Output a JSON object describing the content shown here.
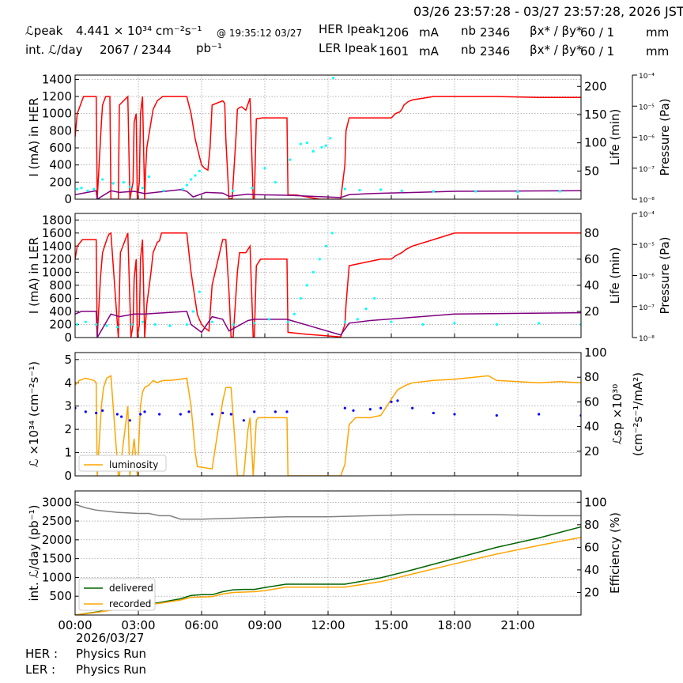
{
  "header": {
    "date_range": "03/26 23:57:28 - 03/27 23:57:28, 2026 JST",
    "lpeak_label": "ℒpeak",
    "lpeak_value": "4.441  × 10³⁴ cm⁻²s⁻¹",
    "lpeak_time": "@ 19:35:12 03/27",
    "int_label": "int. ℒ/day",
    "int_value": "2067   /  2344",
    "int_unit": "pb⁻¹",
    "her_label": "HER Ipeak",
    "her_current": "1206",
    "her_unit": "mA",
    "her_nb_label": "nb",
    "her_nb": "2346",
    "her_beta_label": "βx* / βy*",
    "her_beta": "60    / 1",
    "her_beta_unit": "mm",
    "ler_label": "LER Ipeak",
    "ler_current": "1601",
    "ler_unit": "mA",
    "ler_nb_label": "nb",
    "ler_nb": "2346",
    "ler_beta_label": "βx* / βy*",
    "ler_beta": "60    / 1",
    "ler_beta_unit": "mm"
  },
  "footer": {
    "date": "2026/03/27",
    "her_label": "HER :",
    "her_status": "Physics Run",
    "ler_label": "LER :",
    "ler_status": "Physics Run"
  },
  "colors": {
    "current": "#ff0000",
    "life": "#800080",
    "pressure": "#00ffff",
    "luminosity": "#ffa500",
    "specific_lumi": "#0000ff",
    "delivered": "#006400",
    "recorded": "#ffa500",
    "efficiency": "#808080"
  },
  "chart_data": [
    {
      "type": "line",
      "panel": "HER",
      "ylabel": "I (mA) in HER",
      "ylim": [
        0,
        1450
      ],
      "yticks": [
        0,
        200,
        400,
        600,
        800,
        1000,
        1200,
        1400
      ],
      "y2label": "Life (min)",
      "y2lim": [
        0,
        220
      ],
      "y2ticks": [
        50,
        100,
        150,
        200
      ],
      "y3label": "Pressure (Pa)",
      "y3ticks": [
        "10⁻⁴",
        "10⁻⁵",
        "10⁻⁶",
        "10⁻⁷",
        "10⁻⁸"
      ],
      "xlim": [
        0,
        24
      ],
      "grid": true,
      "series": [
        {
          "key": "current",
          "x": [
            0,
            0.1,
            0.4,
            0.9,
            1.0,
            1.05,
            1.25,
            1.3,
            1.45,
            1.65,
            1.7,
            2.05,
            2.1,
            2.5,
            2.6,
            2.75,
            2.8,
            2.9,
            2.95,
            3.05,
            3.1,
            3.15,
            3.2,
            3.3,
            3.35,
            3.4,
            3.6,
            3.7,
            3.9,
            4.0,
            4.15,
            4.4,
            5.3,
            5.5,
            5.7,
            5.9,
            6.0,
            6.15,
            6.3,
            6.4,
            6.5,
            7.0,
            7.1,
            7.15,
            7.3,
            7.45,
            7.65,
            7.7,
            7.8,
            7.9,
            8.1,
            8.3,
            8.45,
            8.5,
            8.6,
            8.9,
            9.0,
            10.05,
            10.1,
            10.5,
            11.6,
            12.6,
            12.8,
            12.85,
            13.0,
            14.5,
            15.0,
            15.2,
            15.4,
            15.5,
            15.6,
            15.8,
            16.0,
            17.0,
            18.0,
            20.0,
            22.0,
            24.0
          ],
          "y": [
            730,
            1000,
            1200,
            1200,
            1200,
            0,
            900,
            1100,
            1200,
            1200,
            0,
            0,
            1100,
            1200,
            0,
            200,
            900,
            1000,
            0,
            200,
            1000,
            1100,
            1200,
            0,
            350,
            600,
            900,
            1050,
            1150,
            1170,
            1200,
            1200,
            1200,
            1000,
            700,
            500,
            400,
            360,
            340,
            600,
            1100,
            1150,
            1120,
            700,
            0,
            10,
            800,
            1050,
            1070,
            1080,
            1040,
            1180,
            0,
            10,
            940,
            950,
            950,
            950,
            50,
            50,
            0,
            0,
            400,
            800,
            950,
            950,
            950,
            1000,
            1020,
            1050,
            1100,
            1140,
            1160,
            1200,
            1200,
            1200,
            1190,
            1190
          ]
        },
        {
          "key": "life",
          "axis": "y2",
          "x": [
            0,
            1.0,
            1.05,
            1.7,
            2.1,
            2.8,
            3.3,
            5.0,
            5.3,
            5.6,
            6.2,
            7.0,
            7.3,
            8.2,
            8.5,
            10.05,
            12.6,
            13.0,
            14.0,
            18.0,
            24.0
          ],
          "y": [
            8,
            15,
            0,
            15,
            12,
            14,
            10,
            17,
            14,
            4,
            12,
            11,
            5,
            9,
            8,
            7,
            3,
            8,
            10,
            14,
            15
          ]
        },
        {
          "key": "pressure",
          "axis": "y2",
          "x": [
            0.1,
            0.3,
            0.6,
            0.9,
            1.3,
            1.8,
            2.3,
            2.6,
            3.2,
            3.5,
            4.2,
            5.1,
            5.3,
            5.5,
            5.7,
            5.9,
            7.5,
            8.4,
            9.0,
            9.5,
            10.2,
            10.7,
            11.0,
            11.3,
            11.7,
            11.9,
            12.1,
            12.25,
            12.8,
            13.5,
            14.5,
            15.5,
            17.0,
            19.0,
            21.0,
            23.0
          ],
          "y": [
            18,
            20,
            15,
            18,
            35,
            28,
            30,
            22,
            20,
            40,
            15,
            18,
            25,
            35,
            42,
            50,
            15,
            20,
            55,
            30,
            70,
            98,
            100,
            85,
            92,
            95,
            108,
            215,
            18,
            16,
            17,
            15,
            14,
            14,
            13,
            14
          ]
        }
      ]
    },
    {
      "type": "line",
      "panel": "LER",
      "ylabel": "I (mA) in LER",
      "ylim": [
        0,
        1900
      ],
      "yticks": [
        0,
        200,
        400,
        600,
        800,
        1000,
        1200,
        1400,
        1600,
        1800
      ],
      "y2label": "Life (min)",
      "y2lim": [
        0,
        95
      ],
      "y2ticks": [
        20,
        40,
        60,
        80
      ],
      "y3label": "Pressure (Pa)",
      "y3ticks": [
        "10⁻⁴",
        "10⁻⁵",
        "10⁻⁶",
        "10⁻⁷",
        "10⁻⁸"
      ],
      "xlim": [
        0,
        24
      ],
      "grid": true,
      "series": [
        {
          "key": "current",
          "x": [
            0,
            0.1,
            0.35,
            0.85,
            1.0,
            1.05,
            1.2,
            1.3,
            1.5,
            1.6,
            1.7,
            2.05,
            2.15,
            2.5,
            2.65,
            2.75,
            2.8,
            2.9,
            2.95,
            3.05,
            3.1,
            3.2,
            3.3,
            3.4,
            3.6,
            3.7,
            3.9,
            4.0,
            4.1,
            4.4,
            5.3,
            5.5,
            5.8,
            6.0,
            6.15,
            6.35,
            6.5,
            7.0,
            7.15,
            7.3,
            7.4,
            7.5,
            7.7,
            7.8,
            8.1,
            8.3,
            8.45,
            8.5,
            8.6,
            8.8,
            9.2,
            10.05,
            10.1,
            11.0,
            12.6,
            12.8,
            12.85,
            13.0,
            14.5,
            15.0,
            15.2,
            15.5,
            15.7,
            16.0,
            17.0,
            18.0,
            20.0,
            22.0,
            24.0
          ],
          "y": [
            1200,
            1400,
            1500,
            1500,
            1500,
            0,
            900,
            1300,
            1500,
            1580,
            1600,
            0,
            1300,
            1600,
            0,
            200,
            900,
            1200,
            0,
            200,
            1200,
            1500,
            0,
            500,
            1000,
            1300,
            1460,
            1480,
            1600,
            1600,
            1600,
            1000,
            350,
            200,
            150,
            100,
            800,
            1500,
            1500,
            700,
            0,
            10,
            1000,
            1300,
            1300,
            1400,
            0,
            10,
            1100,
            1200,
            1200,
            1200,
            80,
            50,
            10,
            200,
            500,
            1100,
            1200,
            1200,
            1250,
            1300,
            1350,
            1400,
            1500,
            1600,
            1600,
            1600,
            1600
          ]
        },
        {
          "key": "life",
          "axis": "y2",
          "x": [
            0,
            0.3,
            1.0,
            1.05,
            1.7,
            2.1,
            2.8,
            3.3,
            5.3,
            5.5,
            6.0,
            6.5,
            7.0,
            7.3,
            8.2,
            8.5,
            10.05,
            12.6,
            13.0,
            14.0,
            18.0,
            24.0
          ],
          "y": [
            18,
            20,
            20,
            0,
            18,
            16,
            18,
            18,
            20,
            10,
            4,
            16,
            14,
            5,
            13,
            14,
            14,
            2,
            11,
            13,
            18,
            19
          ]
        },
        {
          "key": "pressure",
          "axis": "y2",
          "x": [
            0.1,
            0.5,
            1.0,
            1.5,
            2.0,
            2.7,
            3.2,
            3.8,
            4.5,
            5.3,
            5.6,
            5.9,
            6.5,
            7.5,
            8.5,
            9.2,
            10.1,
            10.4,
            10.7,
            11.0,
            11.3,
            11.6,
            11.9,
            12.2,
            12.8,
            13.4,
            13.8,
            14.2,
            15.0,
            16.5,
            18.0,
            20.0,
            22.0,
            24.0
          ],
          "y": [
            10,
            12,
            10,
            9,
            8,
            10,
            12,
            10,
            9,
            10,
            20,
            35,
            12,
            10,
            11,
            14,
            12,
            18,
            30,
            40,
            50,
            60,
            70,
            80,
            12,
            14,
            22,
            30,
            12,
            10,
            11,
            10,
            11,
            10
          ]
        }
      ]
    },
    {
      "type": "line",
      "panel": "Luminosity",
      "ylabel": "ℒ ×10³⁴ (cm⁻²s⁻¹)",
      "ylim": [
        0,
        5.3
      ],
      "yticks": [
        0,
        1,
        2,
        3,
        4,
        5
      ],
      "y2label": "ℒsp ×10³⁰ (cm⁻²s⁻¹/mA²)",
      "y2lim": [
        0,
        100
      ],
      "y2ticks": [
        20,
        40,
        60,
        80,
        100
      ],
      "xlim": [
        0,
        24
      ],
      "grid": true,
      "legend": {
        "location": "lower-left",
        "entries": [
          "luminosity"
        ]
      },
      "series": [
        {
          "key": "luminosity",
          "name": "luminosity",
          "x": [
            0,
            0.2,
            0.5,
            0.9,
            1.0,
            1.05,
            1.25,
            1.35,
            1.5,
            1.7,
            2.05,
            2.1,
            2.5,
            2.6,
            2.8,
            2.95,
            3.1,
            3.2,
            3.3,
            3.5,
            3.7,
            3.9,
            4.0,
            4.2,
            4.5,
            5.0,
            5.3,
            5.5,
            5.7,
            5.8,
            6.5,
            6.7,
            7.0,
            7.15,
            7.4,
            7.7,
            8.0,
            8.2,
            8.3,
            8.45,
            8.6,
            8.7,
            9.0,
            10.05,
            10.1,
            12.6,
            12.8,
            13.0,
            13.3,
            14.0,
            14.5,
            15.0,
            15.3,
            15.7,
            16.0,
            17.0,
            18.0,
            19.6,
            20.0,
            22.0,
            23.0,
            24.0
          ],
          "y": [
            3.9,
            4.1,
            4.2,
            4.1,
            4.0,
            0,
            3.0,
            3.8,
            4.2,
            4.3,
            0,
            0,
            3.0,
            0,
            1.6,
            0,
            3.0,
            3.6,
            3.8,
            3.9,
            4.1,
            4.0,
            4.05,
            4.1,
            4.1,
            4.15,
            4.2,
            3.0,
            1.0,
            0.4,
            0.3,
            1.5,
            3.2,
            3.8,
            3.8,
            0,
            0,
            2.0,
            2.5,
            0,
            2.4,
            2.5,
            2.5,
            2.5,
            0,
            0,
            0.5,
            2.2,
            2.5,
            2.5,
            2.6,
            3.3,
            3.7,
            3.9,
            4.0,
            4.1,
            4.15,
            4.3,
            4.1,
            4.0,
            4.05,
            4.0
          ]
        },
        {
          "key": "specific_lumi",
          "axis": "y2",
          "x": [
            0,
            0.5,
            1.0,
            1.3,
            2.0,
            2.2,
            2.6,
            3.1,
            3.3,
            4.0,
            5.0,
            5.4,
            6.5,
            7.0,
            7.4,
            8.0,
            8.5,
            9.5,
            10.05,
            12.8,
            13.2,
            14.0,
            14.5,
            15.0,
            15.3,
            16.0,
            17.0,
            18.0,
            20.0,
            22.0,
            24.0
          ],
          "y": [
            55,
            52,
            51,
            53,
            50,
            48,
            45,
            50,
            52,
            50,
            50,
            52,
            50,
            51,
            50,
            45,
            52,
            52,
            52,
            55,
            53,
            54,
            55,
            60,
            61,
            55,
            51,
            50,
            49,
            50,
            49
          ]
        }
      ]
    },
    {
      "type": "line",
      "panel": "Integrated",
      "ylabel": "int. ℒ/day (pb⁻¹)",
      "ylim": [
        0,
        3300
      ],
      "yticks": [
        500,
        1000,
        1500,
        2000,
        2500,
        3000
      ],
      "y2label": "Efficiency (%)",
      "y2lim": [
        0,
        110
      ],
      "y2ticks": [
        20,
        40,
        60,
        80,
        100
      ],
      "xlim": [
        0,
        24
      ],
      "xticks": [
        "00:00",
        "03:00",
        "06:00",
        "09:00",
        "12:00",
        "15:00",
        "18:00",
        "21:00"
      ],
      "grid": true,
      "legend": {
        "location": "lower-left",
        "entries": [
          "delivered",
          "recorded"
        ]
      },
      "series": [
        {
          "key": "delivered",
          "name": "delivered",
          "x": [
            0,
            1,
            2,
            3,
            4,
            5,
            5.5,
            6,
            6.5,
            7,
            7.5,
            8,
            8.5,
            9,
            10,
            11,
            12,
            12.8,
            13.5,
            14.5,
            15,
            16,
            18,
            20,
            22,
            24
          ],
          "y": [
            0,
            80,
            170,
            250,
            330,
            430,
            520,
            540,
            540,
            620,
            670,
            680,
            680,
            730,
            820,
            820,
            820,
            820,
            890,
            990,
            1060,
            1200,
            1500,
            1800,
            2050,
            2344
          ]
        },
        {
          "key": "recorded",
          "name": "recorded",
          "x": [
            0,
            1,
            2,
            3,
            4,
            5,
            5.5,
            6,
            6.5,
            7,
            7.5,
            8,
            8.5,
            9,
            10,
            11,
            12,
            12.8,
            13.5,
            14.5,
            15,
            16,
            18,
            20,
            22,
            24
          ],
          "y": [
            0,
            70,
            150,
            230,
            310,
            400,
            470,
            480,
            490,
            560,
            600,
            610,
            620,
            650,
            740,
            740,
            740,
            740,
            800,
            890,
            950,
            1090,
            1360,
            1620,
            1850,
            2067
          ]
        },
        {
          "key": "efficiency",
          "axis": "y2",
          "x": [
            0,
            0.5,
            1,
            2,
            3,
            3.5,
            4,
            4.5,
            5,
            6,
            8,
            10,
            12,
            14,
            16,
            18,
            20,
            22,
            24
          ],
          "y": [
            98,
            95,
            93,
            91,
            90,
            90,
            88,
            88,
            85,
            85,
            86,
            87,
            87,
            88,
            89,
            89,
            89,
            88,
            88
          ]
        }
      ]
    }
  ]
}
